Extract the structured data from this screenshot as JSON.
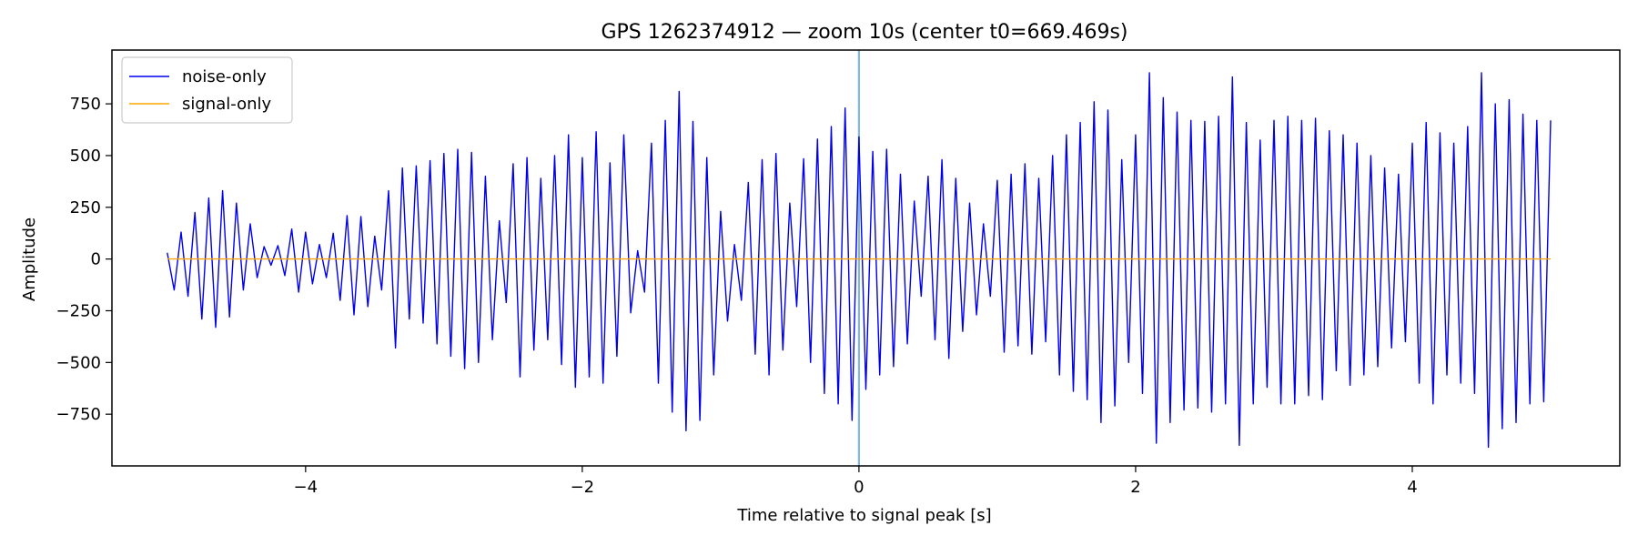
{
  "chart_data": {
    "type": "line",
    "title": "GPS 1262374912 — zoom 10s (center t0=669.469s)",
    "xlabel": "Time relative to signal peak [s]",
    "ylabel": "Amplitude",
    "xlim": [
      -5.4,
      5.5
    ],
    "ylim": [
      -1000,
      1010
    ],
    "xticks": [
      -4,
      -2,
      0,
      2,
      4
    ],
    "yticks": [
      -750,
      -500,
      -250,
      0,
      250,
      500,
      750
    ],
    "xtick_labels": [
      "−4",
      "−2",
      "0",
      "2",
      "4"
    ],
    "ytick_labels": [
      "−750",
      "−500",
      "−250",
      "0",
      "250",
      "500",
      "750"
    ],
    "grid": false,
    "legend_position": "top-left",
    "vline": {
      "x": 0,
      "color": "#7fb8e0"
    },
    "series": [
      {
        "name": "noise-only",
        "color": "#0000ee",
        "x": [
          -5.0,
          -4.95,
          -4.9,
          -4.85,
          -4.8,
          -4.75,
          -4.7,
          -4.65,
          -4.6,
          -4.55,
          -4.5,
          -4.45,
          -4.4,
          -4.35,
          -4.3,
          -4.25,
          -4.2,
          -4.15,
          -4.1,
          -4.05,
          -4.0,
          -3.95,
          -3.9,
          -3.85,
          -3.8,
          -3.75,
          -3.7,
          -3.65,
          -3.6,
          -3.55,
          -3.5,
          -3.45,
          -3.4,
          -3.35,
          -3.3,
          -3.25,
          -3.2,
          -3.15,
          -3.1,
          -3.05,
          -3.0,
          -2.95,
          -2.9,
          -2.85,
          -2.8,
          -2.75,
          -2.7,
          -2.65,
          -2.6,
          -2.55,
          -2.5,
          -2.45,
          -2.4,
          -2.35,
          -2.3,
          -2.25,
          -2.2,
          -2.15,
          -2.1,
          -2.05,
          -2.0,
          -1.95,
          -1.9,
          -1.85,
          -1.8,
          -1.75,
          -1.7,
          -1.65,
          -1.6,
          -1.55,
          -1.5,
          -1.45,
          -1.4,
          -1.35,
          -1.3,
          -1.25,
          -1.2,
          -1.15,
          -1.1,
          -1.05,
          -1.0,
          -0.95,
          -0.9,
          -0.85,
          -0.8,
          -0.75,
          -0.7,
          -0.65,
          -0.6,
          -0.55,
          -0.5,
          -0.45,
          -0.4,
          -0.35,
          -0.3,
          -0.25,
          -0.2,
          -0.15,
          -0.1,
          -0.05,
          0.0,
          0.05,
          0.1,
          0.15,
          0.2,
          0.25,
          0.3,
          0.35,
          0.4,
          0.45,
          0.5,
          0.55,
          0.6,
          0.65,
          0.7,
          0.75,
          0.8,
          0.85,
          0.9,
          0.95,
          1.0,
          1.05,
          1.1,
          1.15,
          1.2,
          1.25,
          1.3,
          1.35,
          1.4,
          1.45,
          1.5,
          1.55,
          1.6,
          1.65,
          1.7,
          1.75,
          1.8,
          1.85,
          1.9,
          1.95,
          2.0,
          2.05,
          2.1,
          2.15,
          2.2,
          2.25,
          2.3,
          2.35,
          2.4,
          2.45,
          2.5,
          2.55,
          2.6,
          2.65,
          2.7,
          2.75,
          2.8,
          2.85,
          2.9,
          2.95,
          3.0,
          3.05,
          3.1,
          3.15,
          3.2,
          3.25,
          3.3,
          3.35,
          3.4,
          3.45,
          3.5,
          3.55,
          3.6,
          3.65,
          3.7,
          3.75,
          3.8,
          3.85,
          3.9,
          3.95,
          4.0,
          4.05,
          4.1,
          4.15,
          4.2,
          4.25,
          4.3,
          4.35,
          4.4,
          4.45,
          4.5,
          4.55,
          4.6,
          4.65,
          4.7,
          4.75,
          4.8,
          4.85,
          4.9,
          4.95,
          5.0
        ],
        "y": [
          30,
          -150,
          130,
          -180,
          225,
          -290,
          295,
          -330,
          330,
          -280,
          270,
          -150,
          170,
          -90,
          60,
          -30,
          65,
          -80,
          145,
          -160,
          130,
          -120,
          70,
          -90,
          125,
          -200,
          210,
          -270,
          205,
          -230,
          110,
          -150,
          330,
          -430,
          440,
          -290,
          450,
          -310,
          475,
          -410,
          510,
          -470,
          530,
          -530,
          515,
          -500,
          400,
          -390,
          185,
          -210,
          460,
          -570,
          490,
          -440,
          390,
          -390,
          500,
          -510,
          600,
          -620,
          490,
          -570,
          615,
          -600,
          465,
          -470,
          600,
          -260,
          40,
          -160,
          560,
          -600,
          670,
          -740,
          810,
          -830,
          665,
          -780,
          490,
          -560,
          230,
          -300,
          70,
          -200,
          370,
          -460,
          480,
          -560,
          510,
          -440,
          270,
          -230,
          485,
          -500,
          580,
          -650,
          640,
          -700,
          730,
          -780,
          590,
          -630,
          520,
          -560,
          530,
          -520,
          410,
          -410,
          280,
          -180,
          400,
          -390,
          480,
          -480,
          390,
          -350,
          270,
          -270,
          170,
          -180,
          380,
          -450,
          410,
          -420,
          460,
          -460,
          390,
          -400,
          500,
          -560,
          600,
          -640,
          660,
          -680,
          760,
          -790,
          720,
          -710,
          480,
          -500,
          600,
          -650,
          900,
          -890,
          780,
          -790,
          710,
          -730,
          670,
          -720,
          665,
          -740,
          690,
          -700,
          880,
          -900,
          660,
          -700,
          575,
          -620,
          670,
          -700,
          690,
          -700,
          670,
          -660,
          680,
          -680,
          620,
          -540,
          600,
          -610,
          560,
          -560,
          500,
          -520,
          440,
          -430,
          410,
          -400,
          560,
          -600,
          660,
          -700,
          610,
          -560,
          560,
          -600,
          640,
          -650,
          900,
          -910,
          750,
          -820,
          770,
          -790,
          700,
          -700,
          670,
          -690,
          670
        ]
      },
      {
        "name": "signal-only",
        "color": "#ffa500",
        "x": [
          -5.0,
          5.0
        ],
        "y": [
          0,
          0
        ]
      }
    ]
  }
}
